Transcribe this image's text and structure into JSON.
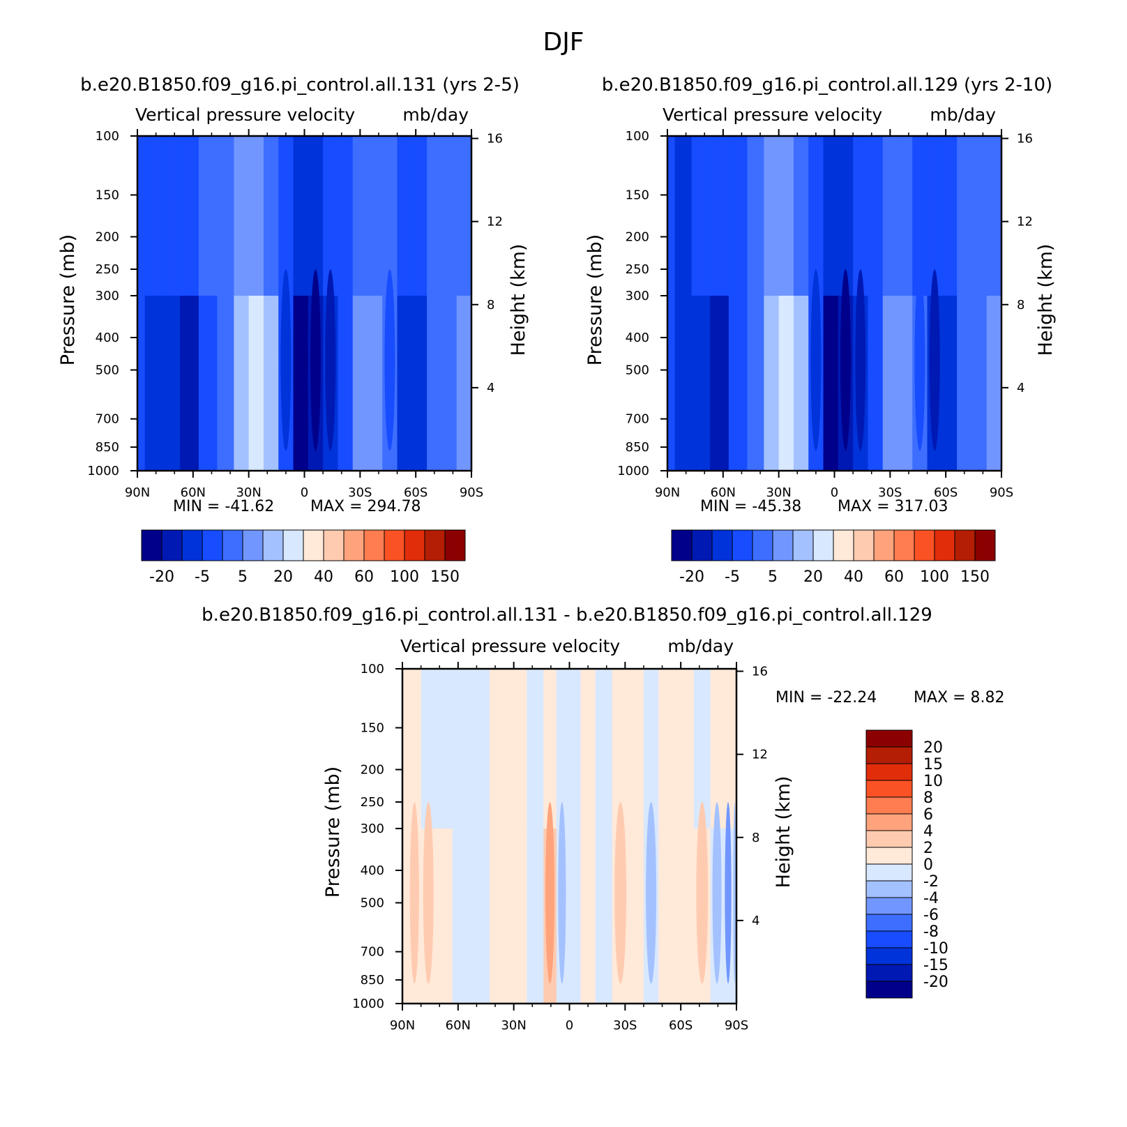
{
  "page_title": "DJF",
  "palettes": {
    "abs": [
      "#00008b",
      "#0019b3",
      "#0033d9",
      "#174cff",
      "#3d6eff",
      "#7196ff",
      "#a4c1ff",
      "#d8e8ff",
      "#ffe9d9",
      "#ffcbb0",
      "#ffa37d",
      "#ff7d50",
      "#fa5224",
      "#e12d0a",
      "#b31e05",
      "#8b0000"
    ],
    "diff": [
      "#00008b",
      "#0019b3",
      "#0033d9",
      "#174cff",
      "#3d6eff",
      "#7196ff",
      "#a4c1ff",
      "#d8e8ff",
      "#ffe9d9",
      "#ffcbb0",
      "#ffa37d",
      "#ff7d50",
      "#fa5224",
      "#e12d0a",
      "#b31e05",
      "#8b0000"
    ]
  },
  "chart_data": [
    {
      "type": "heatmap",
      "case_title": "b.e20.B1850.f09_g16.pi_control.all.131 (yrs 2-5)",
      "title": "Vertical pressure velocity",
      "units": "mb/day",
      "ylabel": "Pressure (mb)",
      "y2label": "Height (km)",
      "x_ticks": [
        "90N",
        "60N",
        "30N",
        "0",
        "30S",
        "60S",
        "90S"
      ],
      "y_ticks": [
        "100",
        "150",
        "200",
        "250",
        "300",
        "400",
        "500",
        "700",
        "850",
        "1000"
      ],
      "y2_ticks": [
        "16",
        "12",
        "8",
        "4"
      ],
      "min_label": "MIN = -41.62",
      "max_label": "MAX = 294.78",
      "xlim": [
        90,
        -90
      ],
      "ylim": [
        1000,
        100
      ],
      "colorbar_labels": [
        "-20",
        "-5",
        "5",
        "20",
        "40",
        "60",
        "100",
        "150"
      ],
      "columns": [
        {
          "lat": 90,
          "top": 3,
          "bottom": 3,
          "core": 3
        },
        {
          "lat": 82,
          "top": 3,
          "bottom": 2,
          "core": 2
        },
        {
          "lat": 72,
          "top": 3,
          "bottom": 2,
          "core": 2
        },
        {
          "lat": 62,
          "top": 3,
          "bottom": 1,
          "core": 1
        },
        {
          "lat": 52,
          "top": 4,
          "bottom": 3,
          "core": 3
        },
        {
          "lat": 42,
          "top": 4,
          "bottom": 4,
          "core": 4
        },
        {
          "lat": 34,
          "top": 5,
          "bottom": 6,
          "core": 6
        },
        {
          "lat": 26,
          "top": 5,
          "bottom": 7,
          "core": 7
        },
        {
          "lat": 18,
          "top": 4,
          "bottom": 6,
          "core": 6
        },
        {
          "lat": 10,
          "top": 3,
          "bottom": 3,
          "core": 2
        },
        {
          "lat": 2,
          "top": 2,
          "bottom": 0,
          "core": 0
        },
        {
          "lat": -6,
          "top": 2,
          "bottom": 1,
          "core": 0
        },
        {
          "lat": -14,
          "top": 3,
          "bottom": 2,
          "core": 1
        },
        {
          "lat": -22,
          "top": 3,
          "bottom": 3,
          "core": 3
        },
        {
          "lat": -30,
          "top": 4,
          "bottom": 5,
          "core": 5
        },
        {
          "lat": -38,
          "top": 4,
          "bottom": 5,
          "core": 5
        },
        {
          "lat": -46,
          "top": 4,
          "bottom": 4,
          "core": 3
        },
        {
          "lat": -54,
          "top": 3,
          "bottom": 2,
          "core": 2
        },
        {
          "lat": -62,
          "top": 3,
          "bottom": 2,
          "core": 2
        },
        {
          "lat": -70,
          "top": 4,
          "bottom": 4,
          "core": 4
        },
        {
          "lat": -78,
          "top": 4,
          "bottom": 4,
          "core": 4
        },
        {
          "lat": -86,
          "top": 4,
          "bottom": 5,
          "core": 5
        },
        {
          "lat": -90,
          "top": 4,
          "bottom": 5,
          "core": 5
        }
      ]
    },
    {
      "type": "heatmap",
      "case_title": "b.e20.B1850.f09_g16.pi_control.all.129 (yrs 2-10)",
      "title": "Vertical pressure velocity",
      "units": "mb/day",
      "ylabel": "Pressure (mb)",
      "y2label": "Height (km)",
      "x_ticks": [
        "90N",
        "60N",
        "30N",
        "0",
        "30S",
        "60S",
        "90S"
      ],
      "y_ticks": [
        "100",
        "150",
        "200",
        "250",
        "300",
        "400",
        "500",
        "700",
        "850",
        "1000"
      ],
      "y2_ticks": [
        "16",
        "12",
        "8",
        "4"
      ],
      "min_label": "MIN = -45.38",
      "max_label": "MAX = 317.03",
      "xlim": [
        90,
        -90
      ],
      "ylim": [
        1000,
        100
      ],
      "colorbar_labels": [
        "-20",
        "-5",
        "5",
        "20",
        "40",
        "60",
        "100",
        "150"
      ],
      "columns": [
        {
          "lat": 90,
          "top": 3,
          "bottom": 3,
          "core": 3
        },
        {
          "lat": 82,
          "top": 2,
          "bottom": 2,
          "core": 2
        },
        {
          "lat": 72,
          "top": 3,
          "bottom": 2,
          "core": 2
        },
        {
          "lat": 62,
          "top": 3,
          "bottom": 1,
          "core": 1
        },
        {
          "lat": 52,
          "top": 3,
          "bottom": 3,
          "core": 3
        },
        {
          "lat": 42,
          "top": 4,
          "bottom": 4,
          "core": 4
        },
        {
          "lat": 34,
          "top": 5,
          "bottom": 6,
          "core": 6
        },
        {
          "lat": 26,
          "top": 5,
          "bottom": 7,
          "core": 7
        },
        {
          "lat": 18,
          "top": 4,
          "bottom": 6,
          "core": 6
        },
        {
          "lat": 10,
          "top": 3,
          "bottom": 3,
          "core": 2
        },
        {
          "lat": 2,
          "top": 2,
          "bottom": 0,
          "core": 0
        },
        {
          "lat": -6,
          "top": 2,
          "bottom": 1,
          "core": 0
        },
        {
          "lat": -14,
          "top": 3,
          "bottom": 2,
          "core": 1
        },
        {
          "lat": -22,
          "top": 3,
          "bottom": 3,
          "core": 3
        },
        {
          "lat": -30,
          "top": 4,
          "bottom": 5,
          "core": 5
        },
        {
          "lat": -38,
          "top": 4,
          "bottom": 5,
          "core": 5
        },
        {
          "lat": -46,
          "top": 3,
          "bottom": 4,
          "core": 3
        },
        {
          "lat": -54,
          "top": 3,
          "bottom": 2,
          "core": 1
        },
        {
          "lat": -62,
          "top": 3,
          "bottom": 2,
          "core": 2
        },
        {
          "lat": -70,
          "top": 4,
          "bottom": 4,
          "core": 4
        },
        {
          "lat": -78,
          "top": 4,
          "bottom": 4,
          "core": 4
        },
        {
          "lat": -86,
          "top": 4,
          "bottom": 5,
          "core": 5
        },
        {
          "lat": -90,
          "top": 4,
          "bottom": 5,
          "core": 5
        }
      ]
    },
    {
      "type": "heatmap",
      "case_title": "b.e20.B1850.f09_g16.pi_control.all.131 - b.e20.B1850.f09_g16.pi_control.all.129",
      "title": "Vertical pressure velocity",
      "units": "mb/day",
      "ylabel": "Pressure (mb)",
      "y2label": "Height (km)",
      "x_ticks": [
        "90N",
        "60N",
        "30N",
        "0",
        "30S",
        "60S",
        "90S"
      ],
      "y_ticks": [
        "100",
        "150",
        "200",
        "250",
        "300",
        "400",
        "500",
        "700",
        "850",
        "1000"
      ],
      "y2_ticks": [
        "16",
        "12",
        "8",
        "4"
      ],
      "min_label": "MIN = -22.24",
      "max_label": "MAX =    8.82",
      "xlim": [
        90,
        -90
      ],
      "ylim": [
        1000,
        100
      ],
      "colorbar_labels": [
        "20",
        "15",
        "10",
        "8",
        "6",
        "4",
        "2",
        "0",
        "-2",
        "-4",
        "-6",
        "-8",
        "-10",
        "-15",
        "-20"
      ],
      "columns": [
        {
          "lat": 90,
          "top": 8,
          "bottom": 8,
          "core": 8
        },
        {
          "lat": 84,
          "top": 8,
          "bottom": 8,
          "core": 9
        },
        {
          "lat": 76,
          "top": 7,
          "bottom": 8,
          "core": 9
        },
        {
          "lat": 68,
          "top": 7,
          "bottom": 8,
          "core": 8
        },
        {
          "lat": 58,
          "top": 7,
          "bottom": 7,
          "core": 7
        },
        {
          "lat": 48,
          "top": 7,
          "bottom": 7,
          "core": 7
        },
        {
          "lat": 38,
          "top": 8,
          "bottom": 8,
          "core": 8
        },
        {
          "lat": 28,
          "top": 8,
          "bottom": 8,
          "core": 8
        },
        {
          "lat": 18,
          "top": 7,
          "bottom": 7,
          "core": 7
        },
        {
          "lat": 10,
          "top": 8,
          "bottom": 9,
          "core": 10
        },
        {
          "lat": 4,
          "top": 7,
          "bottom": 7,
          "core": 6
        },
        {
          "lat": -2,
          "top": 7,
          "bottom": 7,
          "core": 7
        },
        {
          "lat": -10,
          "top": 8,
          "bottom": 8,
          "core": 8
        },
        {
          "lat": -18,
          "top": 7,
          "bottom": 7,
          "core": 7
        },
        {
          "lat": -28,
          "top": 8,
          "bottom": 8,
          "core": 9
        },
        {
          "lat": -36,
          "top": 8,
          "bottom": 8,
          "core": 8
        },
        {
          "lat": -44,
          "top": 7,
          "bottom": 7,
          "core": 6
        },
        {
          "lat": -52,
          "top": 8,
          "bottom": 8,
          "core": 8
        },
        {
          "lat": -62,
          "top": 8,
          "bottom": 8,
          "core": 8
        },
        {
          "lat": -72,
          "top": 7,
          "bottom": 8,
          "core": 9
        },
        {
          "lat": -80,
          "top": 8,
          "bottom": 7,
          "core": 6
        },
        {
          "lat": -86,
          "top": 8,
          "bottom": 7,
          "core": 5
        },
        {
          "lat": -90,
          "top": 8,
          "bottom": 7,
          "core": 6
        }
      ]
    }
  ]
}
